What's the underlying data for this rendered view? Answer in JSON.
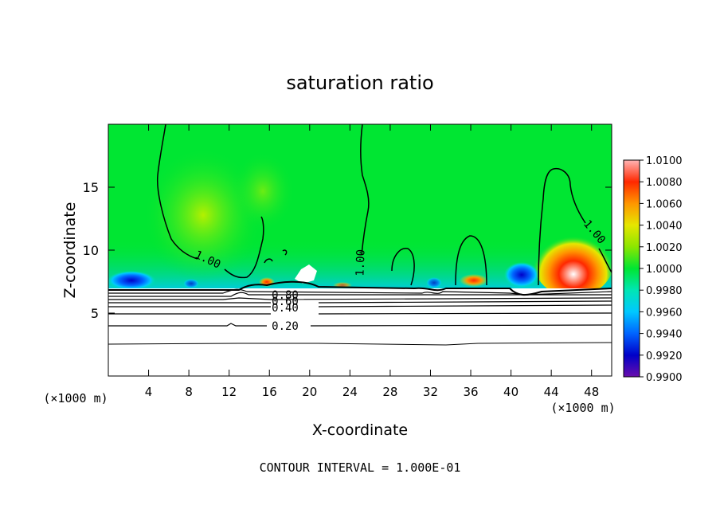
{
  "chart_data": {
    "type": "heatmap",
    "title": "saturation ratio",
    "xlabel": "X-coordinate",
    "ylabel": "Z-coordinate",
    "x_unit_left": "(×1000 m)",
    "x_unit_right": "(×1000 m)",
    "xlim": [
      0,
      50
    ],
    "ylim": [
      0,
      20
    ],
    "x_ticks": [
      4,
      8,
      12,
      16,
      20,
      24,
      28,
      32,
      36,
      40,
      44,
      48
    ],
    "y_ticks": [
      5,
      10,
      15
    ],
    "colorbar": {
      "min": 0.99,
      "max": 1.01,
      "ticks": [
        "1.0100",
        "1.0080",
        "1.0060",
        "1.0040",
        "1.0020",
        "1.0000",
        "0.9980",
        "0.9960",
        "0.9940",
        "0.9920",
        "0.9900"
      ]
    },
    "contour_labels": [
      {
        "text": "1.00",
        "x": 9.6,
        "y": 9.3
      },
      {
        "text": "1.00",
        "x": 25.4,
        "y": 9.6
      },
      {
        "text": "1.00",
        "x": 47.3,
        "y": 11.8
      },
      {
        "text": "0.80",
        "x": 17.5,
        "y": 6.8
      },
      {
        "text": "0.60",
        "x": 17.5,
        "y": 6.1
      },
      {
        "text": "0.40",
        "x": 17.5,
        "y": 5.4
      },
      {
        "text": "0.20",
        "x": 17.5,
        "y": 4.0
      }
    ],
    "footer": "CONTOUR INTERVAL = 1.000E-01"
  }
}
